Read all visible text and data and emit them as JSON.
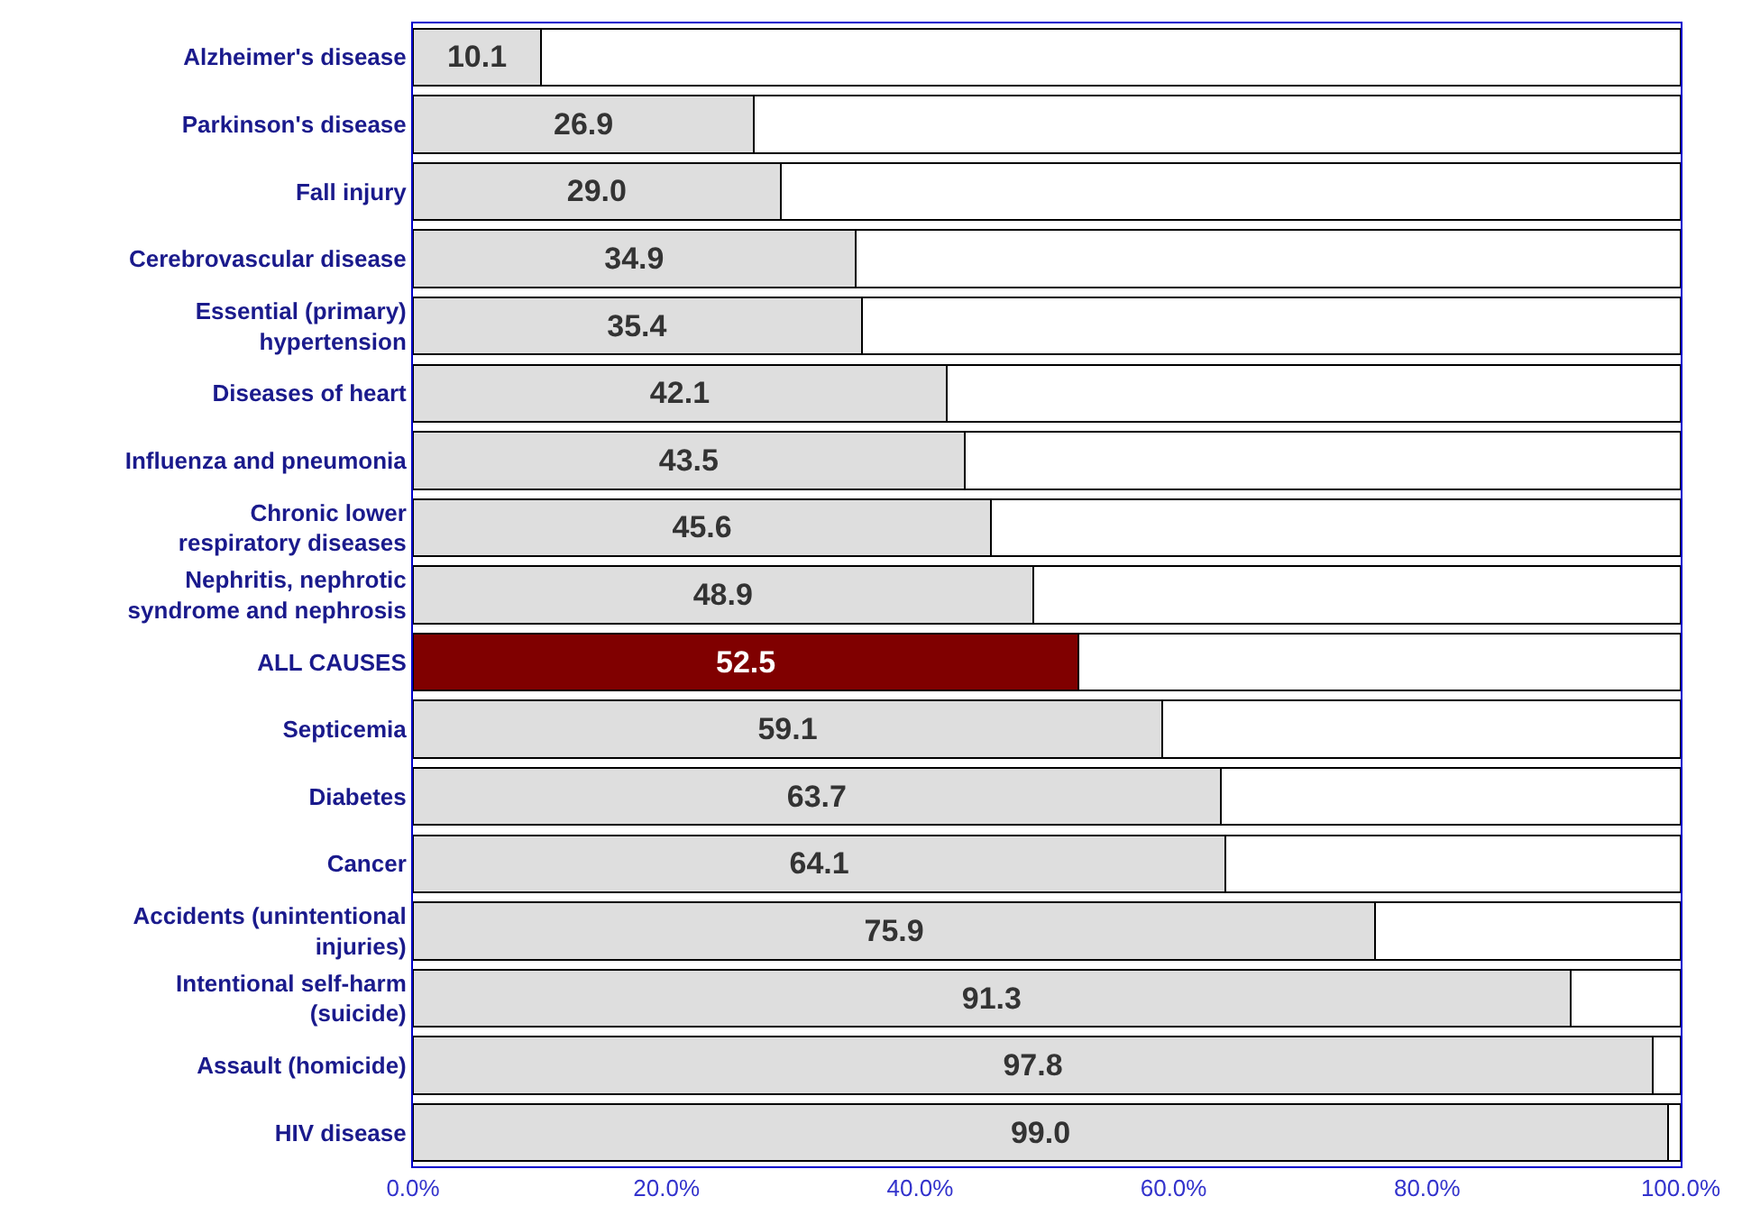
{
  "chart_data": {
    "type": "bar",
    "orientation": "horizontal",
    "stacked": true,
    "categories": [
      "Alzheimer's disease",
      "Parkinson's disease",
      "Fall injury",
      "Cerebrovascular disease",
      "Essential (primary)\nhypertension",
      "Diseases of heart",
      "Influenza and pneumonia",
      "Chronic lower\nrespiratory diseases",
      "Nephritis, nephrotic\nsyndrome and nephrosis",
      "ALL CAUSES",
      "Septicemia",
      "Diabetes",
      "Cancer",
      "Accidents (unintentional\ninjuries)",
      "Intentional self-harm\n(suicide)",
      "Assault (homicide)",
      "HIV disease"
    ],
    "series": [
      {
        "colors": [
          "#dedede",
          "#dedede",
          "#dedede",
          "#dedede",
          "#dedede",
          "#dedede",
          "#dedede",
          "#dedede",
          "#dedede",
          "#800000",
          "#dedede",
          "#dedede",
          "#dedede",
          "#dedede",
          "#dedede",
          "#dedede",
          "#dedede"
        ],
        "values": [
          10.1,
          26.9,
          29.0,
          34.9,
          35.4,
          42.1,
          43.5,
          45.6,
          48.9,
          52.5,
          59.1,
          63.7,
          64.1,
          75.9,
          91.3,
          97.8,
          99.0
        ],
        "value_labels": [
          "10.1",
          "26.9",
          "29.0",
          "34.9",
          "35.4",
          "42.1",
          "43.5",
          "45.6",
          "48.9",
          "52.5",
          "59.1",
          "63.7",
          "64.1",
          "75.9",
          "91.3",
          "97.8",
          "99.0"
        ]
      },
      {
        "color": "#ffffff",
        "values": [
          89.9,
          73.1,
          71.0,
          65.1,
          64.6,
          57.9,
          56.5,
          54.4,
          51.1,
          47.5,
          40.9,
          36.3,
          35.9,
          24.1,
          8.7,
          2.2,
          1.0
        ]
      }
    ],
    "xlim": [
      0,
      100
    ],
    "xticks": [
      {
        "value": 0,
        "label": "0.0%"
      },
      {
        "value": 20,
        "label": "20.0%"
      },
      {
        "value": 40,
        "label": "40.0%"
      },
      {
        "value": 60,
        "label": "60.0%"
      },
      {
        "value": 80,
        "label": "80.0%"
      },
      {
        "value": 100,
        "label": "100.0%"
      }
    ]
  }
}
